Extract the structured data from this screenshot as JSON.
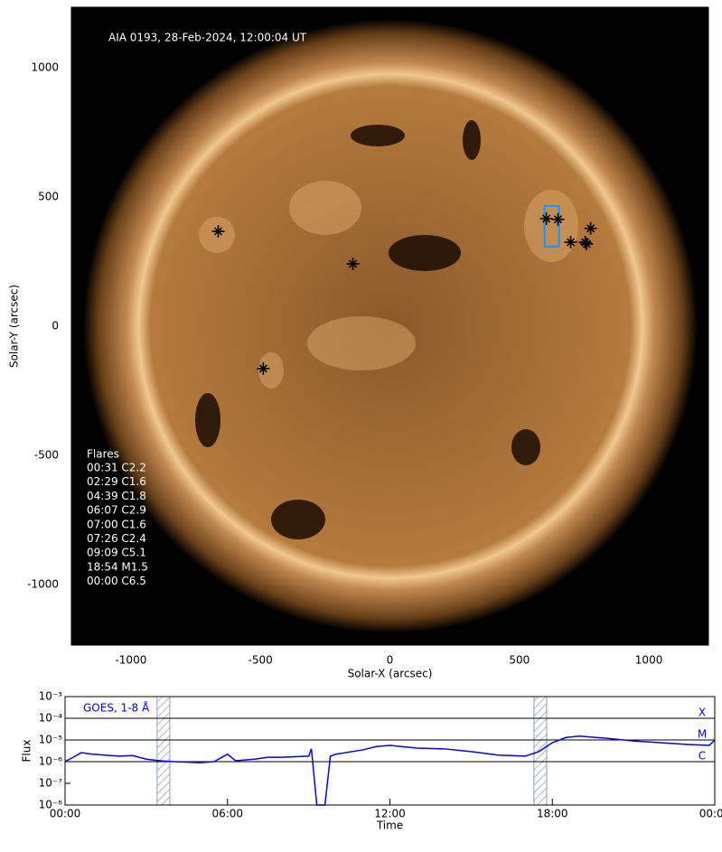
{
  "chart_data": [
    {
      "type": "image",
      "title": "AIA 0193, 28-Feb-2024, 12:00:04 UT",
      "x_label": "Solar-X (arcsec)",
      "y_label": "Solar-Y (arcsec)",
      "xlim": [
        -1230,
        1230
      ],
      "ylim": [
        -1234,
        1234
      ],
      "xticks": [
        -1000,
        -500,
        0,
        500,
        1000
      ],
      "yticks": [
        -1000,
        -500,
        0,
        500,
        1000
      ],
      "flares": {
        "x": [
          -663,
          -143,
          -489,
          604,
          649,
          698,
          754,
          775,
          760
        ],
        "y": [
          367,
          241,
          -164,
          416,
          413,
          325,
          325,
          378,
          318
        ],
        "color": "#000000"
      },
      "region": {
        "x": [
          597,
          653
        ],
        "y": [
          308,
          465
        ],
        "color": "#1e90ff"
      },
      "flare_list": {
        "title": "Flares",
        "items": [
          "00:31 C2.2",
          "02:29 C1.6",
          "04:39 C1.8",
          "06:07 C2.9",
          "07:00 C1.6",
          "07:26 C2.4",
          "09:09 C5.1",
          "18:54 M1.5",
          "00:00 C6.5"
        ]
      }
    },
    {
      "type": "line",
      "log_y": true,
      "y_label": "Flux",
      "x_label": "Time",
      "xlim": [
        0,
        24
      ],
      "ylim": [
        1e-08,
        0.001
      ],
      "xticks": [
        {
          "value": 0,
          "label": "00:00"
        },
        {
          "value": 6,
          "label": "06:00"
        },
        {
          "value": 12,
          "label": "12:00"
        },
        {
          "value": 18,
          "label": "18:00"
        },
        {
          "value": 24,
          "label": "00:00"
        }
      ],
      "yticks": [
        {
          "value": 1e-08,
          "label": "10⁻⁸"
        },
        {
          "value": 1e-07,
          "label": "10⁻⁷"
        },
        {
          "value": 1e-06,
          "label": "10⁻⁶"
        },
        {
          "value": 1e-05,
          "label": "10⁻⁵"
        },
        {
          "value": 0.0001,
          "label": "10⁻⁴"
        },
        {
          "value": 0.001,
          "label": "10⁻³"
        }
      ],
      "levels": [
        {
          "value": 0.0001,
          "label": "X"
        },
        {
          "value": 1e-05,
          "label": "M"
        },
        {
          "value": 1e-06,
          "label": "C"
        }
      ],
      "bands": [
        [
          3.4,
          3.87
        ],
        [
          17.32,
          17.79
        ]
      ],
      "series": [
        {
          "name": "GOES, 1-8 Å",
          "color": "#0000ff",
          "x": [
            0,
            0.3,
            0.6,
            1,
            2,
            2.5,
            3,
            3.5,
            4,
            5,
            5.5,
            6,
            6.3,
            7,
            7.5,
            8,
            9,
            9.1,
            9.3,
            9.6,
            9.8,
            10,
            11,
            11.5,
            12,
            13,
            14,
            15,
            16,
            17,
            17.5,
            18,
            18.5,
            19,
            20,
            21,
            22,
            23,
            23.8,
            24
          ],
          "values": [
            1e-06,
            1.6e-06,
            2.6e-06,
            2.2e-06,
            1.8e-06,
            1.9e-06,
            1.3e-06,
            1.1e-06,
            1e-06,
            9e-07,
            1e-06,
            2.2e-06,
            1.1e-06,
            1.3e-06,
            1.6e-06,
            1.6e-06,
            1.8e-06,
            3.9e-06,
            1e-08,
            1e-08,
            1.8e-06,
            2.2e-06,
            3.5e-06,
            5e-06,
            5.6e-06,
            4.2e-06,
            3.9e-06,
            2.9e-06,
            2e-06,
            1.8e-06,
            2.9e-06,
            7.5e-06,
            1.3e-05,
            1.5e-05,
            1.2e-05,
            9e-06,
            7.5e-06,
            6.2e-06,
            5.6e-06,
            1e-05
          ]
        }
      ]
    }
  ]
}
